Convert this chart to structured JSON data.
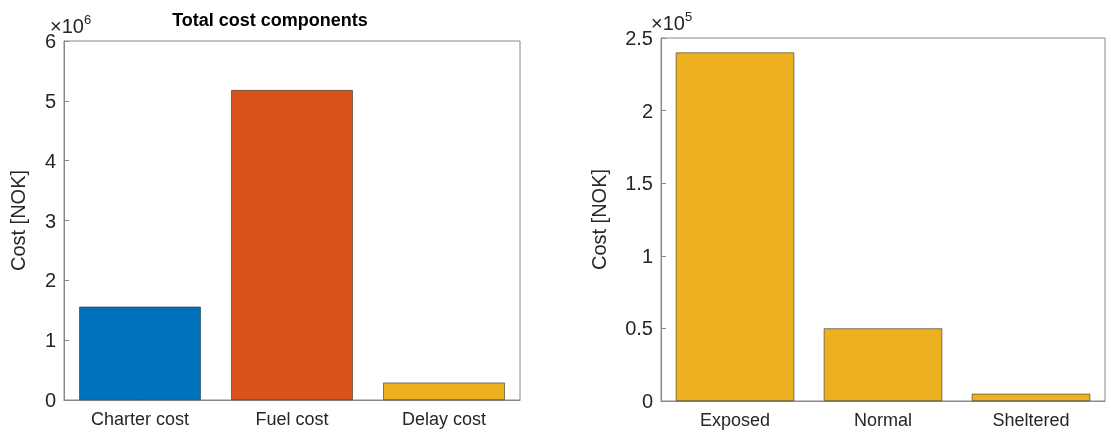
{
  "chart_data": [
    {
      "type": "bar",
      "title": "Total cost components",
      "ylabel": "Cost [NOK]",
      "categories": [
        "Charter cost",
        "Fuel cost",
        "Delay cost"
      ],
      "values": [
        1.56,
        5.18,
        0.29
      ],
      "colors": [
        "#0072bd",
        "#d95319",
        "#edb120"
      ],
      "ylim": [
        0,
        6
      ],
      "yticks": [
        0,
        1,
        2,
        3,
        4,
        5,
        6
      ],
      "annotations": [
        "×10$^{6}$"
      ],
      "grid": false
    },
    {
      "type": "bar",
      "ylabel": "Cost [NOK]",
      "categories": [
        "Exposed",
        "Normal",
        "Sheltered"
      ],
      "values": [
        2.4,
        0.5,
        0.05
      ],
      "colors": [
        "#edb120",
        "#edb120",
        "#edb120"
      ],
      "ylim": [
        0,
        2.5
      ],
      "yticks": [
        0,
        0.5,
        1,
        1.5,
        2,
        2.5
      ],
      "annotations": [
        "×10$^{5}$"
      ],
      "grid": false
    }
  ]
}
